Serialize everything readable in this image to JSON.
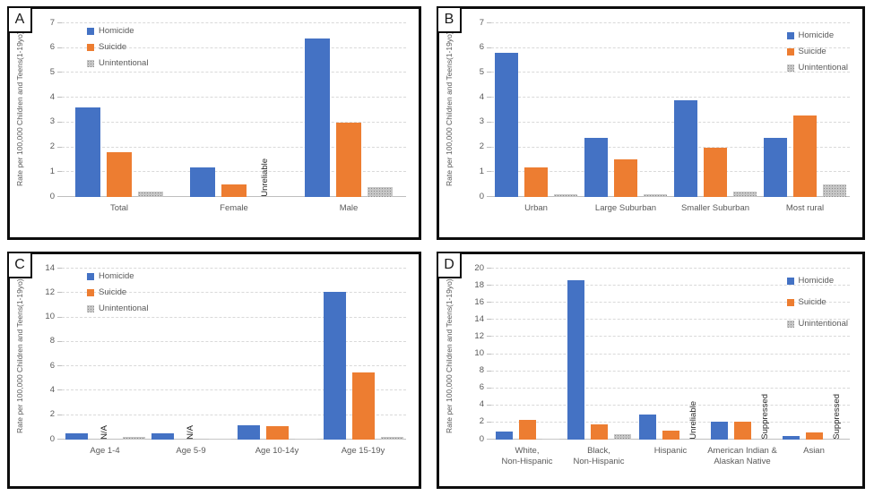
{
  "figure": {
    "description_note": "Four-panel bar chart figure of firearm death rates",
    "accent_colors": {
      "homicide": "#4472C4",
      "suicide": "#ED7D31",
      "unintentional": "#A5A5A5"
    }
  },
  "chart_data": [
    {
      "type": "bar",
      "label": "A",
      "ylabel_line1": "Rate per 100,000  Children and Teens",
      "ylabel_line2": "(1-19yo)",
      "ylim": [
        0,
        7
      ],
      "ystep": 1,
      "grid": "dashed horizontal",
      "legend_position": "top-left",
      "categories": [
        "Total",
        "Female",
        "Male"
      ],
      "series": [
        {
          "name": "Homicide",
          "color": "#4472C4",
          "values": [
            3.6,
            1.2,
            6.4
          ]
        },
        {
          "name": "Suicide",
          "color": "#ED7D31",
          "values": [
            1.8,
            0.5,
            3.0
          ]
        },
        {
          "name": "Unintentional",
          "color": "#A5A5A5",
          "pattern": "dots",
          "values": [
            0.2,
            "Unreliable",
            0.4
          ]
        }
      ]
    },
    {
      "type": "bar",
      "label": "B",
      "ylabel_line1": "Rate per 100,000  Children and Teens",
      "ylabel_line2": "(1-19yo)",
      "ylim": [
        0,
        7
      ],
      "ystep": 1,
      "grid": "dashed horizontal",
      "legend_position": "top-right",
      "categories": [
        "Urban",
        "Large Suburban",
        "Smaller Suburban",
        "Most rural"
      ],
      "series": [
        {
          "name": "Homicide",
          "color": "#4472C4",
          "values": [
            5.8,
            2.4,
            3.9,
            2.4
          ]
        },
        {
          "name": "Suicide",
          "color": "#ED7D31",
          "values": [
            1.2,
            1.5,
            2.0,
            3.3
          ]
        },
        {
          "name": "Unintentional",
          "color": "#A5A5A5",
          "pattern": "dots",
          "values": [
            0.1,
            0.1,
            0.2,
            0.5
          ]
        }
      ]
    },
    {
      "type": "bar",
      "label": "C",
      "ylabel_line1": "Rate per 100,000  Children and Teens",
      "ylabel_line2": "(1-19yo)",
      "ylim": [
        0,
        14
      ],
      "ystep": 2,
      "grid": "dashed horizontal",
      "legend_position": "top-left",
      "categories": [
        "Age 1-4",
        "Age 5-9",
        "Age 10-14y",
        "Age 15-19y"
      ],
      "series": [
        {
          "name": "Homicide",
          "color": "#4472C4",
          "values": [
            0.5,
            0.5,
            1.2,
            12.1
          ]
        },
        {
          "name": "Suicide",
          "color": "#ED7D31",
          "values": [
            "N/A",
            "N/A",
            1.1,
            5.5
          ]
        },
        {
          "name": "Unintentional",
          "color": "#A5A5A5",
          "pattern": "dots",
          "values": [
            0.25,
            0.05,
            0.05,
            0.25
          ]
        }
      ]
    },
    {
      "type": "bar",
      "label": "D",
      "ylabel_line1": "Rate per 100,000  Children and Teens",
      "ylabel_line2": "(1-19yo)",
      "ylim": [
        0,
        20
      ],
      "ystep": 2,
      "grid": "dashed horizontal",
      "legend_position": "top-right",
      "categories": [
        "White,\nNon-Hispanic",
        "Black,\nNon-Hispanic",
        "Hispanic",
        "American Indian &\nAlaskan Native",
        "Asian"
      ],
      "series": [
        {
          "name": "Homicide",
          "color": "#4472C4",
          "values": [
            0.9,
            18.6,
            2.9,
            2.1,
            0.4
          ]
        },
        {
          "name": "Suicide",
          "color": "#ED7D31",
          "values": [
            2.3,
            1.8,
            1.1,
            2.1,
            0.8
          ]
        },
        {
          "name": "Unintentional",
          "color": "#A5A5A5",
          "pattern": "dots",
          "values": [
            0.15,
            0.6,
            "Unreliable",
            "Suppressed",
            "Suppressed"
          ]
        }
      ]
    }
  ]
}
